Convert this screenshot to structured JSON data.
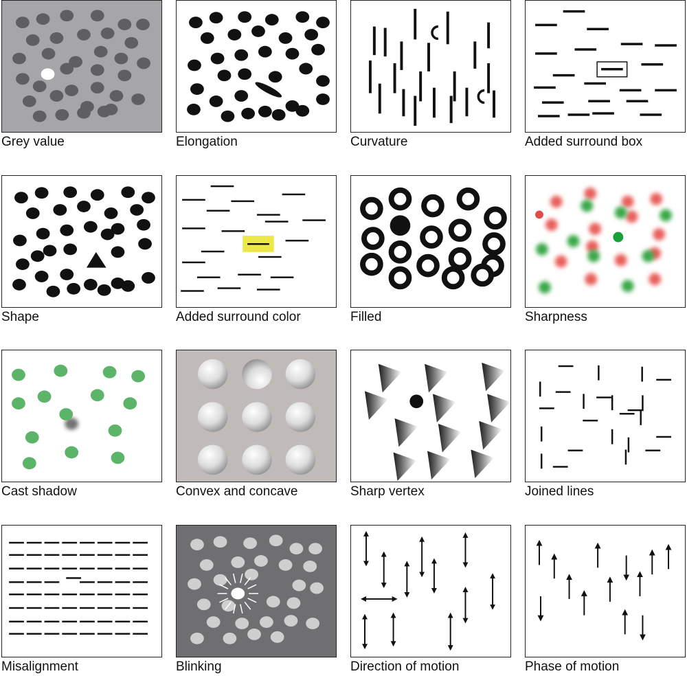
{
  "figure": {
    "panels": [
      {
        "id": "grey-value",
        "label": "Grey value"
      },
      {
        "id": "elongation",
        "label": "Elongation"
      },
      {
        "id": "curvature",
        "label": "Curvature"
      },
      {
        "id": "added-surround-box",
        "label": "Added surround box"
      },
      {
        "id": "shape",
        "label": "Shape"
      },
      {
        "id": "added-surround-color",
        "label": "Added surround color"
      },
      {
        "id": "filled",
        "label": "Filled"
      },
      {
        "id": "sharpness",
        "label": "Sharpness"
      },
      {
        "id": "cast-shadow",
        "label": "Cast shadow"
      },
      {
        "id": "convex-and-concave",
        "label": "Convex and concave"
      },
      {
        "id": "sharp-vertex",
        "label": "Sharp vertex"
      },
      {
        "id": "joined-lines",
        "label": "Joined lines"
      },
      {
        "id": "misalignment",
        "label": "Misalignment"
      },
      {
        "id": "blinking",
        "label": "Blinking"
      },
      {
        "id": "direction-of-motion",
        "label": "Direction of motion"
      },
      {
        "id": "phase-of-motion",
        "label": "Phase of motion"
      }
    ]
  },
  "colors": {
    "grey_panel_bg": "#a6a6a8",
    "grey_dot": "#5f5f61",
    "target_highlight": "#ece84a",
    "red_blur": "#e8605c",
    "green_blur": "#3aa84a",
    "green_dot": "#5cb468",
    "concave_bg": "#c0bab8",
    "blink_bg": "#6f6f71",
    "blink_dot": "#cfcfcf"
  }
}
